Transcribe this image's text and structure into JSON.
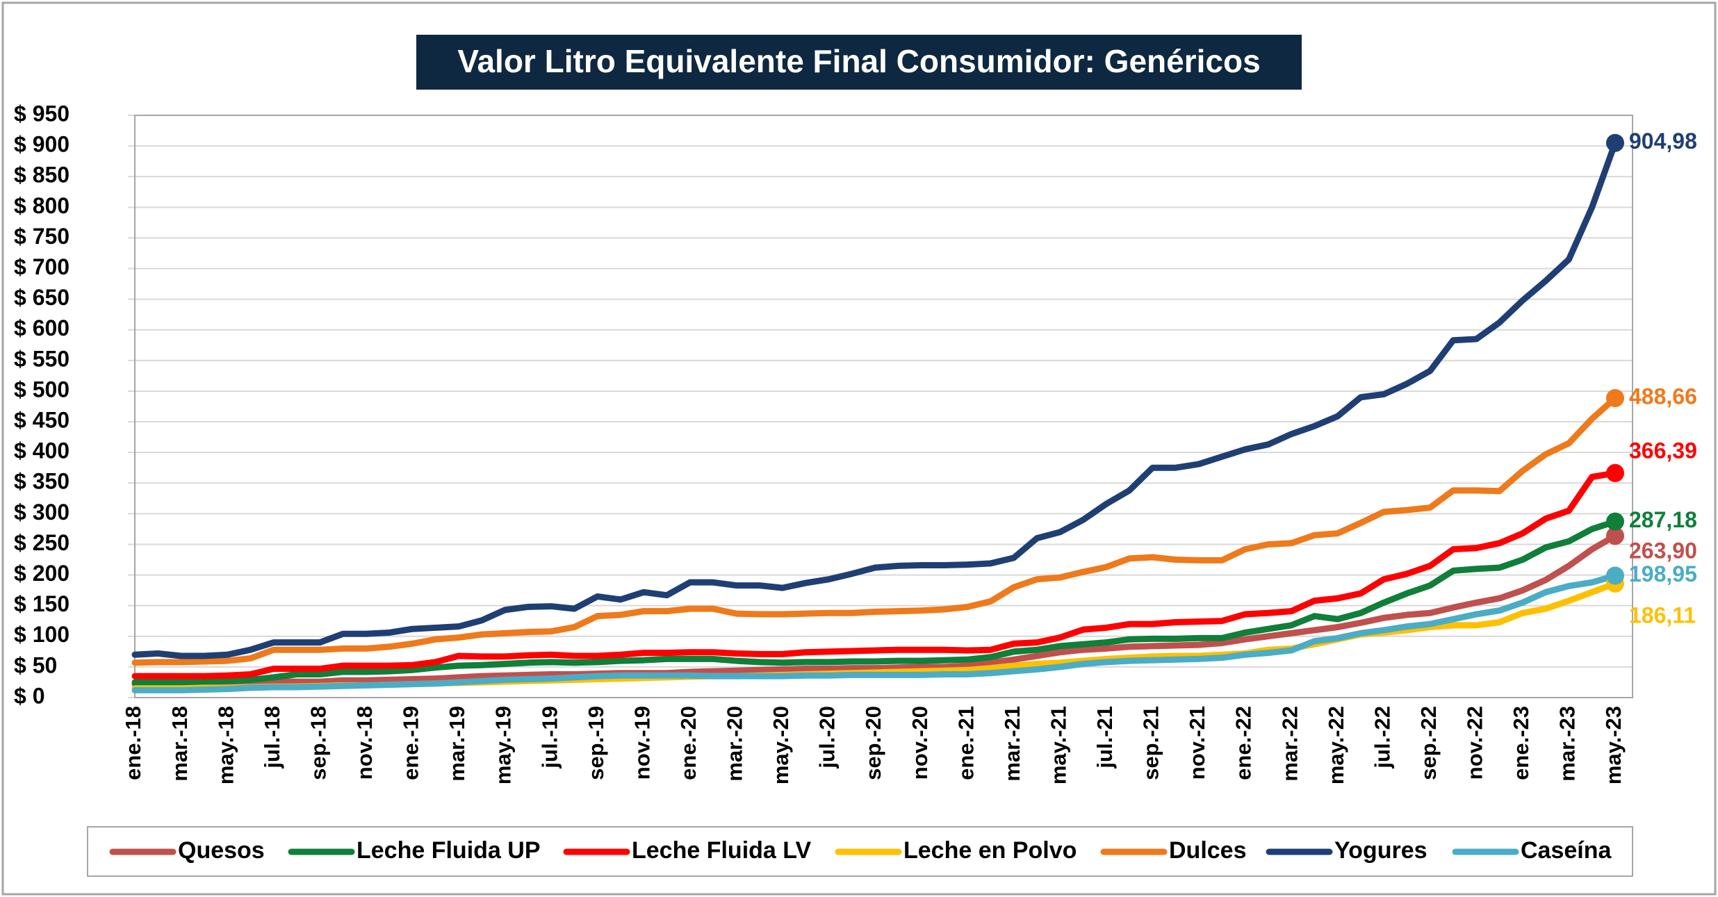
{
  "chart_data": {
    "type": "line",
    "title": "Valor Litro Equivalente Final Consumidor: Genéricos",
    "categories": [
      "ene.-18",
      null,
      "mar.-18",
      null,
      "may.-18",
      null,
      "jul.-18",
      null,
      "sep.-18",
      null,
      "nov.-18",
      null,
      "ene.-19",
      null,
      "mar.-19",
      null,
      "may.-19",
      null,
      "jul.-19",
      null,
      "sep.-19",
      null,
      "nov.-19",
      null,
      "ene.-20",
      null,
      "mar.-20",
      null,
      "may.-20",
      null,
      "jul.-20",
      null,
      "sep.-20",
      null,
      "nov.-20",
      null,
      "ene.-21",
      null,
      "mar.-21",
      null,
      "may.-21",
      null,
      "jul.-21",
      null,
      "sep.-21",
      null,
      "nov.-21",
      null,
      "ene.-22",
      null,
      "mar.-22",
      null,
      "may.-22",
      null,
      "jul.-22",
      null,
      "sep.-22",
      null,
      "nov.-22",
      null,
      "ene.-23",
      null,
      "mar.-23",
      null,
      "may.-23"
    ],
    "ylim": [
      0,
      950
    ],
    "yticks": [
      {
        "value": 0,
        "label": "$ 0"
      },
      {
        "value": 50,
        "label": "$ 50"
      },
      {
        "value": 100,
        "label": "$ 100"
      },
      {
        "value": 150,
        "label": "$ 150"
      },
      {
        "value": 200,
        "label": "$ 200"
      },
      {
        "value": 250,
        "label": "$ 250"
      },
      {
        "value": 300,
        "label": "$ 300"
      },
      {
        "value": 350,
        "label": "$ 350"
      },
      {
        "value": 400,
        "label": "$ 400"
      },
      {
        "value": 450,
        "label": "$ 450"
      },
      {
        "value": 500,
        "label": "$ 500"
      },
      {
        "value": 550,
        "label": "$ 550"
      },
      {
        "value": 600,
        "label": "$ 600"
      },
      {
        "value": 650,
        "label": "$ 650"
      },
      {
        "value": 700,
        "label": "$ 700"
      },
      {
        "value": 750,
        "label": "$ 750"
      },
      {
        "value": 800,
        "label": "$ 800"
      },
      {
        "value": 850,
        "label": "$ 850"
      },
      {
        "value": 900,
        "label": "$ 900"
      },
      {
        "value": 950,
        "label": "$ 950"
      }
    ],
    "grid": true,
    "legend": "bottom",
    "series": [
      {
        "name": "Quesos",
        "color": "#c0504d",
        "values": [
          22,
          22,
          22,
          23,
          23,
          24,
          26,
          26,
          26,
          28,
          28,
          29,
          30,
          31,
          33,
          35,
          36,
          37,
          38,
          38,
          39,
          40,
          40,
          40,
          42,
          43,
          44,
          45,
          46,
          47,
          47,
          48,
          48,
          49,
          50,
          50,
          52,
          57,
          62,
          68,
          74,
          78,
          80,
          83,
          84,
          85,
          86,
          89,
          95,
          100,
          105,
          110,
          115,
          122,
          130,
          135,
          138,
          147,
          155,
          162,
          175,
          192,
          215,
          242,
          263.9
        ],
        "value_labels": [
          null,
          null,
          null,
          null,
          null,
          null,
          null,
          null,
          null,
          null,
          null,
          null,
          null,
          null,
          null,
          null,
          null,
          null,
          null,
          null,
          null,
          null,
          null,
          null,
          null,
          null,
          null,
          null,
          null,
          null,
          null,
          null,
          null,
          null,
          null,
          null,
          null,
          null,
          null,
          null,
          null,
          null,
          null,
          null,
          null,
          null,
          null,
          null,
          null,
          null,
          null,
          null,
          null,
          null,
          null,
          null,
          null,
          null,
          null,
          null,
          null,
          null,
          null,
          null,
          "263,90"
        ]
      },
      {
        "name": "Leche Fluida UP",
        "color": "#0f7f3a",
        "values": [
          25,
          25,
          25,
          26,
          27,
          29,
          33,
          38,
          38,
          42,
          42,
          43,
          45,
          49,
          52,
          53,
          55,
          57,
          58,
          57,
          58,
          60,
          61,
          63,
          63,
          63,
          60,
          58,
          57,
          58,
          58,
          59,
          59,
          60,
          60,
          61,
          62,
          66,
          75,
          78,
          84,
          87,
          90,
          95,
          96,
          96,
          97,
          97,
          106,
          112,
          118,
          133,
          128,
          138,
          155,
          170,
          183,
          207,
          210,
          212,
          225,
          245,
          255,
          275,
          287.18
        ],
        "value_labels": [
          null,
          null,
          null,
          null,
          null,
          null,
          null,
          null,
          null,
          null,
          null,
          null,
          null,
          null,
          null,
          null,
          null,
          null,
          null,
          null,
          null,
          null,
          null,
          null,
          null,
          null,
          null,
          null,
          null,
          null,
          null,
          null,
          null,
          null,
          null,
          null,
          null,
          null,
          null,
          null,
          null,
          null,
          null,
          null,
          null,
          null,
          null,
          null,
          null,
          null,
          null,
          null,
          null,
          null,
          null,
          null,
          null,
          null,
          null,
          null,
          null,
          null,
          null,
          null,
          "287,18"
        ]
      },
      {
        "name": "Leche Fluida LV",
        "color": "#ff0000",
        "values": [
          35,
          35,
          35,
          35,
          36,
          38,
          47,
          47,
          47,
          52,
          52,
          52,
          53,
          58,
          68,
          67,
          67,
          69,
          70,
          68,
          68,
          70,
          73,
          73,
          74,
          74,
          72,
          71,
          71,
          74,
          75,
          76,
          77,
          78,
          78,
          78,
          77,
          78,
          88,
          90,
          98,
          111,
          114,
          120,
          120,
          123,
          124,
          125,
          136,
          138,
          141,
          158,
          162,
          170,
          193,
          202,
          215,
          242,
          244,
          252,
          268,
          292,
          305,
          360,
          366.39
        ],
        "value_labels": [
          null,
          null,
          null,
          null,
          null,
          null,
          null,
          null,
          null,
          null,
          null,
          null,
          null,
          null,
          null,
          null,
          null,
          null,
          null,
          null,
          null,
          null,
          null,
          null,
          null,
          null,
          null,
          null,
          null,
          null,
          null,
          null,
          null,
          null,
          null,
          null,
          null,
          null,
          null,
          null,
          null,
          null,
          null,
          null,
          null,
          null,
          null,
          null,
          null,
          null,
          null,
          null,
          null,
          null,
          null,
          null,
          null,
          null,
          null,
          null,
          null,
          null,
          null,
          null,
          "366,39"
        ]
      },
      {
        "name": "Leche en Polvo",
        "color": "#ffc000",
        "values": [
          15,
          15,
          15,
          16,
          16,
          17,
          18,
          18,
          19,
          20,
          20,
          21,
          22,
          23,
          24,
          25,
          26,
          27,
          28,
          29,
          30,
          31,
          32,
          33,
          34,
          35,
          35,
          36,
          37,
          38,
          39,
          40,
          41,
          42,
          43,
          44,
          45,
          48,
          52,
          55,
          57,
          60,
          63,
          65,
          67,
          68,
          68,
          70,
          72,
          78,
          80,
          87,
          95,
          103,
          106,
          110,
          115,
          118,
          118,
          123,
          138,
          145,
          158,
          172,
          186.11
        ],
        "value_labels": [
          null,
          null,
          null,
          null,
          null,
          null,
          null,
          null,
          null,
          null,
          null,
          null,
          null,
          null,
          null,
          null,
          null,
          null,
          null,
          null,
          null,
          null,
          null,
          null,
          null,
          null,
          null,
          null,
          null,
          null,
          null,
          null,
          null,
          null,
          null,
          null,
          null,
          null,
          null,
          null,
          null,
          null,
          null,
          null,
          null,
          null,
          null,
          null,
          null,
          null,
          null,
          null,
          null,
          null,
          null,
          null,
          null,
          null,
          null,
          null,
          null,
          null,
          null,
          null,
          "186,11"
        ]
      },
      {
        "name": "Dulces",
        "color": "#ee7a1c",
        "values": [
          57,
          58,
          58,
          59,
          60,
          64,
          78,
          78,
          78,
          80,
          80,
          83,
          88,
          95,
          98,
          103,
          105,
          107,
          108,
          115,
          133,
          135,
          141,
          141,
          145,
          145,
          137,
          136,
          136,
          137,
          138,
          138,
          140,
          141,
          142,
          144,
          148,
          157,
          180,
          193,
          196,
          205,
          213,
          227,
          229,
          225,
          224,
          224,
          242,
          250,
          252,
          265,
          268,
          285,
          303,
          306,
          310,
          338,
          338,
          337,
          370,
          397,
          415,
          455,
          488.66
        ],
        "value_labels": [
          null,
          null,
          null,
          null,
          null,
          null,
          null,
          null,
          null,
          null,
          null,
          null,
          null,
          null,
          null,
          null,
          null,
          null,
          null,
          null,
          null,
          null,
          null,
          null,
          null,
          null,
          null,
          null,
          null,
          null,
          null,
          null,
          null,
          null,
          null,
          null,
          null,
          null,
          null,
          null,
          null,
          null,
          null,
          null,
          null,
          null,
          null,
          null,
          null,
          null,
          null,
          null,
          null,
          null,
          null,
          null,
          null,
          null,
          null,
          null,
          null,
          null,
          null,
          null,
          "488,66"
        ]
      },
      {
        "name": "Yogures",
        "color": "#1f3f74",
        "values": [
          70,
          72,
          68,
          68,
          70,
          78,
          90,
          90,
          90,
          104,
          104,
          106,
          112,
          114,
          116,
          126,
          143,
          148,
          149,
          145,
          165,
          160,
          172,
          167,
          188,
          188,
          183,
          183,
          179,
          187,
          193,
          202,
          212,
          215,
          216,
          216,
          217,
          219,
          228,
          260,
          270,
          290,
          316,
          338,
          375,
          375,
          381,
          393,
          405,
          413,
          430,
          443,
          459,
          490,
          495,
          512,
          533,
          583,
          585,
          612,
          648,
          680,
          715,
          800,
          904.98
        ],
        "value_labels": [
          null,
          null,
          null,
          null,
          null,
          null,
          null,
          null,
          null,
          null,
          null,
          null,
          null,
          null,
          null,
          null,
          null,
          null,
          null,
          null,
          null,
          null,
          null,
          null,
          null,
          null,
          null,
          null,
          null,
          null,
          null,
          null,
          null,
          null,
          null,
          null,
          null,
          null,
          null,
          null,
          null,
          null,
          null,
          null,
          null,
          null,
          null,
          null,
          null,
          null,
          null,
          null,
          null,
          null,
          null,
          null,
          null,
          null,
          null,
          null,
          null,
          null,
          null,
          null,
          "904,98"
        ]
      },
      {
        "name": "Caseína",
        "color": "#4bacc6",
        "values": [
          12,
          12,
          12,
          13,
          14,
          16,
          17,
          17,
          18,
          19,
          20,
          21,
          22,
          23,
          25,
          27,
          29,
          30,
          31,
          33,
          35,
          36,
          36,
          36,
          36,
          35,
          35,
          35,
          35,
          36,
          36,
          37,
          37,
          37,
          37,
          38,
          38,
          40,
          43,
          46,
          50,
          55,
          58,
          60,
          61,
          62,
          63,
          65,
          70,
          73,
          77,
          92,
          97,
          105,
          110,
          116,
          120,
          128,
          136,
          142,
          155,
          172,
          182,
          188,
          198.95
        ],
        "value_labels": [
          null,
          null,
          null,
          null,
          null,
          null,
          null,
          null,
          null,
          null,
          null,
          null,
          null,
          null,
          null,
          null,
          null,
          null,
          null,
          null,
          null,
          null,
          null,
          null,
          null,
          null,
          null,
          null,
          null,
          null,
          null,
          null,
          null,
          null,
          null,
          null,
          null,
          null,
          null,
          null,
          null,
          null,
          null,
          null,
          null,
          null,
          null,
          null,
          null,
          null,
          null,
          null,
          null,
          null,
          null,
          null,
          null,
          null,
          null,
          null,
          null,
          null,
          null,
          null,
          "198,95"
        ]
      }
    ]
  }
}
